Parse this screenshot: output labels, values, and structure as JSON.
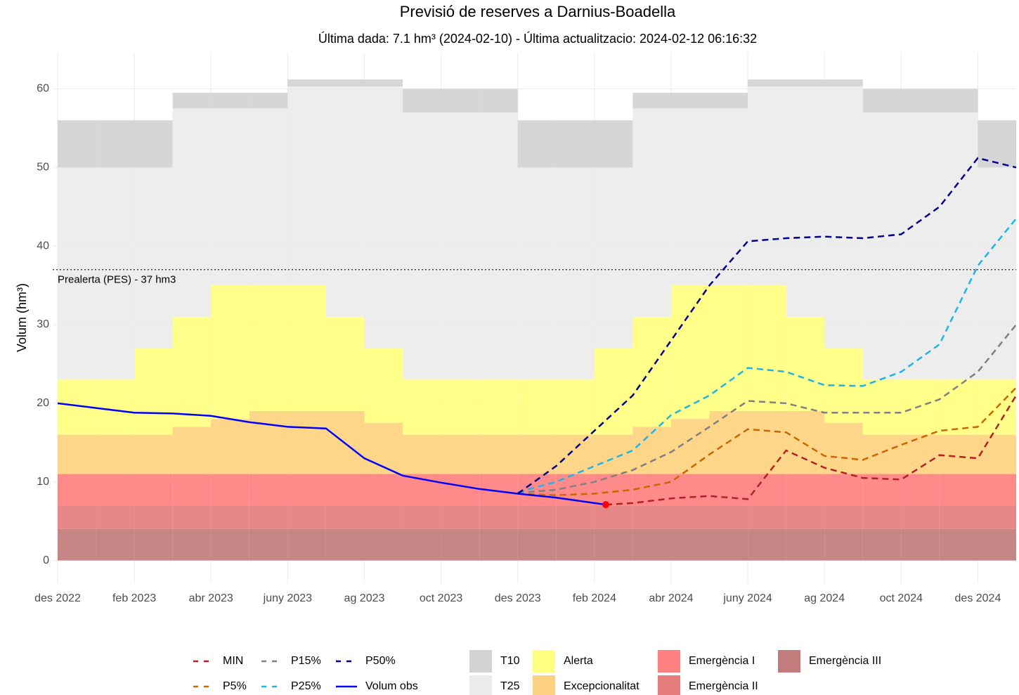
{
  "chart_data": {
    "type": "line",
    "title": "Previsió de reserves a Darnius-Boadella",
    "subtitle": "Última dada: 7.1 hm³ (2024-02-10) - Última actualitzacio: 2024-02-12 06:16:32",
    "y_label": "Volum (hm³)",
    "xlim": [
      "2022-12",
      "2025-01"
    ],
    "ylim": [
      -2.9,
      64.6
    ],
    "yticks": [
      0,
      10,
      20,
      30,
      40,
      50,
      60
    ],
    "xticks": [
      {
        "value": "2022-12",
        "label": "des 2022"
      },
      {
        "value": "2023-02",
        "label": "feb 2023"
      },
      {
        "value": "2023-04",
        "label": "abr 2023"
      },
      {
        "value": "2023-06",
        "label": "juny 2023"
      },
      {
        "value": "2023-08",
        "label": "ag 2023"
      },
      {
        "value": "2023-10",
        "label": "oct 2023"
      },
      {
        "value": "2023-12",
        "label": "des 2023"
      },
      {
        "value": "2024-02",
        "label": "feb 2024"
      },
      {
        "value": "2024-04",
        "label": "abr 2024"
      },
      {
        "value": "2024-06",
        "label": "juny 2024"
      },
      {
        "value": "2024-08",
        "label": "ag 2024"
      },
      {
        "value": "2024-10",
        "label": "oct 2024"
      },
      {
        "value": "2024-12",
        "label": "des 2024"
      }
    ],
    "grid": true,
    "reference_line": {
      "value": 37,
      "label": "Prealerta (PES) - 37 hm3"
    },
    "months": [
      "2022-12",
      "2023-01",
      "2023-02",
      "2023-03",
      "2023-04",
      "2023-05",
      "2023-06",
      "2023-07",
      "2023-08",
      "2023-09",
      "2023-10",
      "2023-11",
      "2023-12",
      "2024-01",
      "2024-02",
      "2024-03",
      "2024-04",
      "2024-05",
      "2024-06",
      "2024-07",
      "2024-08",
      "2024-09",
      "2024-10",
      "2024-11",
      "2024-12"
    ],
    "zones": [
      {
        "name": "T10",
        "color": "#d3d3d3",
        "values": [
          56,
          56,
          56,
          59.5,
          59.5,
          59.5,
          61.2,
          61.2,
          61.2,
          60,
          60,
          60,
          56,
          56,
          56,
          59.5,
          59.5,
          59.5,
          61.2,
          61.2,
          61.2,
          60,
          60,
          60,
          56
        ]
      },
      {
        "name": "T25",
        "color": "#ebebeb",
        "values": [
          50,
          50,
          50,
          57.5,
          57.5,
          57.5,
          60.3,
          60.3,
          60.3,
          57,
          57,
          57,
          50,
          50,
          50,
          57.5,
          57.5,
          57.5,
          60.3,
          60.3,
          60.3,
          57,
          57,
          57,
          50
        ]
      },
      {
        "name": "Alerta",
        "color": "#ffff80",
        "values": [
          23,
          23,
          27,
          31,
          35,
          35,
          35,
          31,
          27,
          23,
          23,
          23,
          23,
          23,
          27,
          31,
          35,
          35,
          35,
          31,
          27,
          23,
          23,
          23,
          23
        ]
      },
      {
        "name": "Excepcionalitat",
        "color": "#fdd280",
        "values": [
          16,
          16,
          16,
          17,
          18,
          19,
          19,
          19,
          17.5,
          16,
          16,
          16,
          16,
          16,
          16,
          17,
          18,
          19,
          19,
          19,
          17.5,
          16,
          16,
          16,
          16
        ]
      },
      {
        "name": "Emergència I",
        "color": "#ff8080",
        "values": 11
      },
      {
        "name": "Emergència II",
        "color": "#e57d7d",
        "values": 7
      },
      {
        "name": "Emergència III",
        "color": "#c27c7c",
        "values": 4
      }
    ],
    "series": [
      {
        "name": "MIN",
        "color": "#b22222",
        "dash": true,
        "x": [
          "2024-02-10",
          "2024-03",
          "2024-04",
          "2024-05",
          "2024-06",
          "2024-07",
          "2024-08",
          "2024-09",
          "2024-10",
          "2024-11",
          "2024-12",
          "2025-01"
        ],
        "values": [
          7.1,
          7.3,
          7.9,
          8.2,
          7.8,
          14,
          11.8,
          10.5,
          10.3,
          13.4,
          13,
          21
        ]
      },
      {
        "name": "P5%",
        "color": "#cc6600",
        "dash": true,
        "x": [
          "2023-12",
          "2024-01",
          "2024-02",
          "2024-03",
          "2024-04",
          "2024-05",
          "2024-06",
          "2024-07",
          "2024-08",
          "2024-09",
          "2024-10",
          "2024-11",
          "2024-12",
          "2025-01"
        ],
        "values": [
          8.5,
          8.3,
          8.5,
          9,
          10,
          13.5,
          16.7,
          16.3,
          13.3,
          12.8,
          14.7,
          16.5,
          17,
          22
        ]
      },
      {
        "name": "P15%",
        "color": "#808080",
        "dash": true,
        "x": [
          "2023-12",
          "2024-01",
          "2024-02",
          "2024-03",
          "2024-04",
          "2024-05",
          "2024-06",
          "2024-07",
          "2024-08",
          "2024-09",
          "2024-10",
          "2024-11",
          "2024-12",
          "2025-01"
        ],
        "values": [
          8.6,
          9,
          10,
          11.5,
          13.8,
          17,
          20.3,
          20,
          18.8,
          18.8,
          18.8,
          20.5,
          24,
          30
        ]
      },
      {
        "name": "P25%",
        "color": "#1fb4e6",
        "dash": true,
        "x": [
          "2023-12",
          "2024-01",
          "2024-02",
          "2024-03",
          "2024-04",
          "2024-05",
          "2024-06",
          "2024-07",
          "2024-08",
          "2024-09",
          "2024-10",
          "2024-11",
          "2024-12",
          "2025-01"
        ],
        "values": [
          8.7,
          10,
          12,
          14,
          18.5,
          21,
          24.5,
          24,
          22.3,
          22.2,
          24,
          27.5,
          37.5,
          43.5
        ]
      },
      {
        "name": "P50%",
        "color": "#00008b",
        "dash": true,
        "x": [
          "2023-12",
          "2024-01",
          "2024-02",
          "2024-03",
          "2024-04",
          "2024-05",
          "2024-06",
          "2024-07",
          "2024-08",
          "2024-09",
          "2024-10",
          "2024-11",
          "2024-12",
          "2025-01"
        ],
        "values": [
          8.5,
          12,
          16.5,
          21,
          28,
          35,
          40.6,
          41,
          41.2,
          41,
          41.5,
          45,
          51.2,
          50
        ]
      },
      {
        "name": "Volum obs",
        "color": "#0000ff",
        "dash": false,
        "x": [
          "2022-12",
          "2023-01",
          "2023-02",
          "2023-03",
          "2023-04",
          "2023-05",
          "2023-06",
          "2023-07",
          "2023-08",
          "2023-09",
          "2023-10",
          "2023-11",
          "2023-12",
          "2024-01",
          "2024-02-10"
        ],
        "values": [
          20,
          19.4,
          18.8,
          18.7,
          18.4,
          17.6,
          17,
          16.8,
          13,
          10.8,
          9.9,
          9.1,
          8.5,
          8,
          7.1
        ]
      }
    ],
    "last_point_color": "#ff0000"
  }
}
